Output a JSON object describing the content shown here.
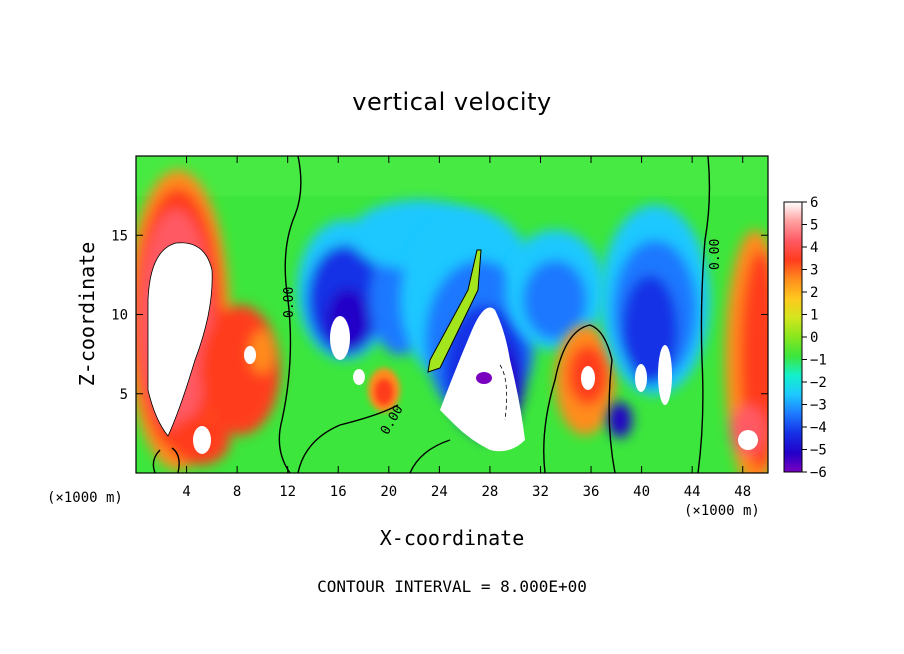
{
  "chart_data": {
    "type": "heatmap",
    "title": "vertical velocity",
    "xlabel": "X-coordinate",
    "ylabel": "Z-coordinate",
    "x_unit_label": "(×1000 m)",
    "xlim": [
      0,
      50
    ],
    "ylim": [
      0,
      20
    ],
    "x_ticks": [
      4,
      8,
      12,
      16,
      20,
      24,
      28,
      32,
      36,
      40,
      44,
      48
    ],
    "y_ticks": [
      5,
      10,
      15
    ],
    "colorbar": {
      "min": -6,
      "max": 6,
      "ticks": [
        6,
        5,
        4,
        3,
        2,
        1,
        0,
        -1,
        -2,
        -3,
        -4,
        -5,
        -6
      ],
      "tick_labels": [
        "6",
        "5",
        "4",
        "3",
        "2",
        "1",
        "0",
        "−1",
        "−2",
        "−3",
        "−4",
        "−5",
        "−6"
      ],
      "colors": [
        "#7a00c0",
        "#2200c8",
        "#1530e6",
        "#1e78ff",
        "#1ec8ff",
        "#14f0cc",
        "#3ce63c",
        "#88e61e",
        "#d2e61e",
        "#ffc81e",
        "#ff8c1e",
        "#ff3c1e",
        "#ff5a64",
        "#ffa0a0",
        "#ffffff"
      ]
    },
    "contour_label": "0.00",
    "features": [
      {
        "kind": "updraft",
        "x": 3.5,
        "z": 10.5,
        "w": 7.0
      },
      {
        "kind": "updraft",
        "x": 4.0,
        "z": 2.5,
        "w": 5.0
      },
      {
        "kind": "updraft",
        "x": 7.0,
        "z": 5.0,
        "w": 4.5
      },
      {
        "kind": "updraft",
        "x": 10.0,
        "z": 6.5,
        "w": 3.5
      },
      {
        "kind": "updraft",
        "x": 10.5,
        "z": 1.5,
        "w": 3.0
      },
      {
        "kind": "updraft",
        "x": 19.0,
        "z": 5.5,
        "w": 4.0
      },
      {
        "kind": "updraft",
        "x": 26.0,
        "z": 10.0,
        "w": 2.0
      },
      {
        "kind": "updraft",
        "x": 35.5,
        "z": 6.0,
        "w": 5.0
      },
      {
        "kind": "updraft",
        "x": 49.0,
        "z": 3.0,
        "w": 5.0
      },
      {
        "kind": "updraft",
        "x": 49.5,
        "z": 10.0,
        "w": 3.5
      },
      {
        "kind": "downdraft",
        "x": 16.5,
        "z": 11.0,
        "w": -5.0
      },
      {
        "kind": "downdraft",
        "x": 27.5,
        "z": 5.5,
        "w": -6.0
      },
      {
        "kind": "downdraft",
        "x": 20.5,
        "z": 7.5,
        "w": -4.0
      },
      {
        "kind": "downdraft",
        "x": 38.5,
        "z": 10.0,
        "w": -4.5
      },
      {
        "kind": "downdraft",
        "x": 41.5,
        "z": 7.0,
        "w": -5.5
      },
      {
        "kind": "downdraft",
        "x": 31.0,
        "z": 13.0,
        "w": -3.0
      }
    ]
  },
  "footnote": "CONTOUR INTERVAL = 8.000E+00",
  "colors": {
    "background": "#ffffff",
    "field_base": "#3ce63c",
    "axis": "#000000"
  }
}
